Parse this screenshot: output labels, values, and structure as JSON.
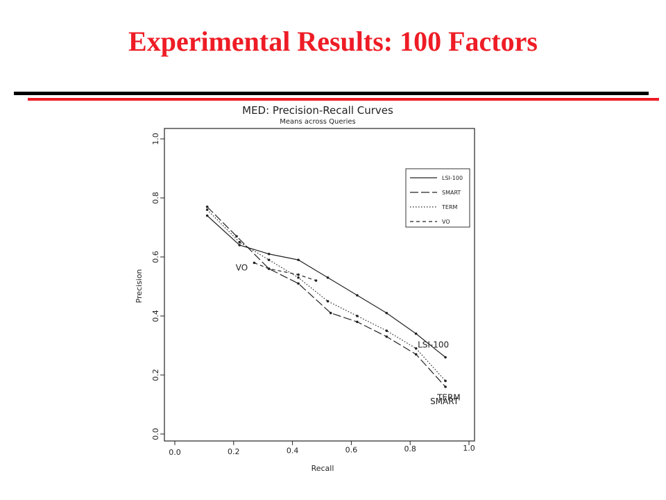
{
  "slide": {
    "title": "Experimental Results: 100 Factors",
    "title_color": "#ee1c25",
    "rule_colors": [
      "#000000",
      "#ee1c25"
    ]
  },
  "chart_data": {
    "type": "line",
    "title": "MED: Precision-Recall Curves",
    "subtitle": "Means across Queries",
    "xlabel": "Recall",
    "ylabel": "Precision",
    "xlim": [
      0.0,
      1.0
    ],
    "ylim": [
      0.0,
      1.0
    ],
    "xticks": [
      "0.0",
      "0.2",
      "0.4",
      "0.6",
      "0.8",
      "1.0"
    ],
    "yticks": [
      "0.0",
      "0.2",
      "0.4",
      "0.6",
      "0.8",
      "1.0"
    ],
    "grid": false,
    "legend_position": "top-right",
    "series": [
      {
        "name": "LSI-100",
        "dash": "solid",
        "label": "LSI-100",
        "x": [
          0.11,
          0.22,
          0.32,
          0.42,
          0.52,
          0.62,
          0.72,
          0.82,
          0.92
        ],
        "y": [
          0.74,
          0.64,
          0.61,
          0.59,
          0.53,
          0.47,
          0.41,
          0.34,
          0.26
        ]
      },
      {
        "name": "SMART",
        "dash": "longdash",
        "label": "SMART",
        "x": [
          0.11,
          0.21,
          0.32,
          0.42,
          0.53,
          0.62,
          0.72,
          0.82,
          0.92
        ],
        "y": [
          0.77,
          0.67,
          0.56,
          0.51,
          0.41,
          0.38,
          0.33,
          0.27,
          0.16
        ]
      },
      {
        "name": "TERM",
        "dash": "dotted",
        "label": "TERM",
        "x": [
          0.11,
          0.22,
          0.32,
          0.42,
          0.52,
          0.62,
          0.72,
          0.82,
          0.92
        ],
        "y": [
          0.76,
          0.65,
          0.59,
          0.53,
          0.45,
          0.4,
          0.35,
          0.29,
          0.18
        ]
      },
      {
        "name": "VO",
        "dash": "dashed",
        "label": "VO",
        "x": [
          0.27,
          0.32,
          0.42,
          0.48
        ],
        "y": [
          0.58,
          0.56,
          0.54,
          0.52
        ]
      }
    ]
  }
}
